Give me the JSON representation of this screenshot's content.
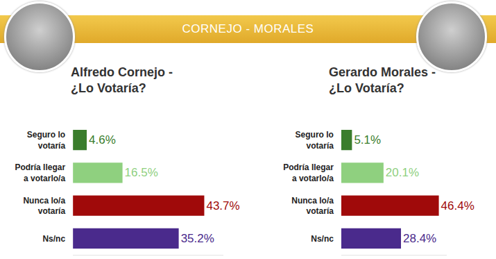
{
  "header": "CORNEJO - MORALES",
  "chart_data": [
    {
      "type": "bar",
      "orientation": "horizontal",
      "title": "Alfredo Cornejo - ¿Lo Votaría?",
      "categories": [
        "Seguro lo votaría",
        "Podría llegar a votarlo/a",
        "Nunca lo/a votaría",
        "Ns/nc"
      ],
      "values": [
        4.6,
        16.5,
        43.7,
        35.2
      ],
      "value_labels": [
        "4.6%",
        "16.5%",
        "43.7%",
        "35.2%"
      ],
      "colors": [
        "#3a7d2c",
        "#8fd07f",
        "#a00a0a",
        "#4a2a8c"
      ],
      "xlim": [
        0,
        50
      ],
      "data_labels": true,
      "tick_labels": "y",
      "grid": false
    },
    {
      "type": "bar",
      "orientation": "horizontal",
      "title": "Gerardo Morales - ¿Lo Votaría?",
      "categories": [
        "Seguro lo votaría",
        "Podría llegar a votarlo/a",
        "Nunca lo/a votaría",
        "Ns/nc"
      ],
      "values": [
        5.1,
        20.1,
        46.4,
        28.4
      ],
      "value_labels": [
        "5.1%",
        "20.1%",
        "46.4%",
        "28.4%"
      ],
      "colors": [
        "#3a7d2c",
        "#8fd07f",
        "#a00a0a",
        "#4a2a8c"
      ],
      "xlim": [
        0,
        50
      ],
      "data_labels": true,
      "tick_labels": "y",
      "grid": false
    }
  ]
}
